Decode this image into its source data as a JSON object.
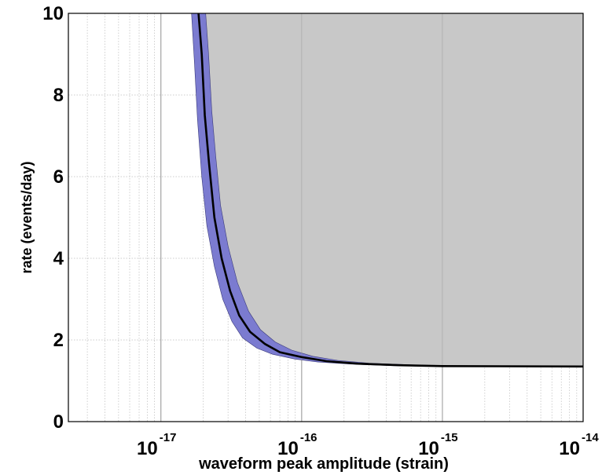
{
  "chart_data": {
    "type": "area",
    "x_scale": "log",
    "xlim": [
      2.2e-18,
      1e-14
    ],
    "ylim": [
      0,
      10
    ],
    "xlabel": "waveform peak amplitude (strain)",
    "ylabel": "rate (events/day)",
    "x_ticks": [
      {
        "value": 1e-17,
        "base": "10",
        "exp": "-17"
      },
      {
        "value": 1e-16,
        "base": "10",
        "exp": "-16"
      },
      {
        "value": 1e-15,
        "base": "10",
        "exp": "-15"
      },
      {
        "value": 1e-14,
        "base": "10",
        "exp": "-14"
      }
    ],
    "y_ticks": [
      {
        "value": 0,
        "label": "0"
      },
      {
        "value": 2,
        "label": "2"
      },
      {
        "value": 4,
        "label": "4"
      },
      {
        "value": 6,
        "label": "6"
      },
      {
        "value": 8,
        "label": "8"
      },
      {
        "value": 10,
        "label": "10"
      }
    ],
    "grid": true,
    "colors": {
      "excluded_region": "#c8c8c8",
      "uncertainty_band": "#7b7bd0",
      "curve": "#000000"
    },
    "series": [
      {
        "role": "central-curve",
        "points": [
          [
            1.85e-17,
            10
          ],
          [
            1.95e-17,
            9.0
          ],
          [
            2.05e-17,
            7.5
          ],
          [
            2.2e-17,
            6.3
          ],
          [
            2.4e-17,
            5.0
          ],
          [
            2.7e-17,
            4.0
          ],
          [
            3.1e-17,
            3.2
          ],
          [
            3.6e-17,
            2.6
          ],
          [
            4.3e-17,
            2.2
          ],
          [
            5.5e-17,
            1.9
          ],
          [
            7e-17,
            1.7
          ],
          [
            1e-16,
            1.58
          ],
          [
            1.5e-16,
            1.48
          ],
          [
            2.5e-16,
            1.42
          ],
          [
            5e-16,
            1.38
          ],
          [
            1e-15,
            1.36
          ],
          [
            1e-14,
            1.35
          ]
        ]
      },
      {
        "role": "band-upper",
        "points": [
          [
            2.08e-17,
            10
          ],
          [
            2.18e-17,
            9.0
          ],
          [
            2.3e-17,
            7.6
          ],
          [
            2.45e-17,
            6.5
          ],
          [
            2.65e-17,
            5.3
          ],
          [
            3e-17,
            4.3
          ],
          [
            3.5e-17,
            3.4
          ],
          [
            4.2e-17,
            2.7
          ],
          [
            5.1e-17,
            2.25
          ],
          [
            6.5e-17,
            1.95
          ],
          [
            8.5e-17,
            1.75
          ],
          [
            1.2e-16,
            1.6
          ],
          [
            1.8e-16,
            1.5
          ],
          [
            3e-16,
            1.43
          ],
          [
            6e-16,
            1.39
          ],
          [
            1e-15,
            1.37
          ],
          [
            1e-14,
            1.36
          ]
        ]
      },
      {
        "role": "band-lower",
        "points": [
          [
            1.65e-17,
            10
          ],
          [
            1.73e-17,
            8.8
          ],
          [
            1.82e-17,
            7.4
          ],
          [
            1.95e-17,
            6.0
          ],
          [
            2.12e-17,
            4.8
          ],
          [
            2.4e-17,
            3.8
          ],
          [
            2.75e-17,
            3.0
          ],
          [
            3.2e-17,
            2.45
          ],
          [
            3.8e-17,
            2.05
          ],
          [
            4.8e-17,
            1.8
          ],
          [
            6.2e-17,
            1.65
          ],
          [
            9e-17,
            1.53
          ],
          [
            1.3e-16,
            1.46
          ],
          [
            2.2e-16,
            1.41
          ],
          [
            4.5e-16,
            1.37
          ],
          [
            1e-15,
            1.35
          ],
          [
            1e-14,
            1.34
          ]
        ]
      }
    ]
  }
}
